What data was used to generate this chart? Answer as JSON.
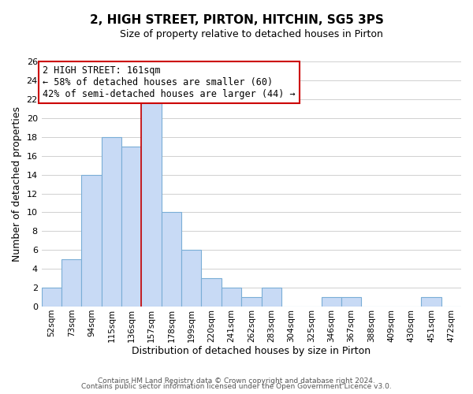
{
  "title": "2, HIGH STREET, PIRTON, HITCHIN, SG5 3PS",
  "subtitle": "Size of property relative to detached houses in Pirton",
  "xlabel": "Distribution of detached houses by size in Pirton",
  "ylabel": "Number of detached properties",
  "bin_labels": [
    "52sqm",
    "73sqm",
    "94sqm",
    "115sqm",
    "136sqm",
    "157sqm",
    "178sqm",
    "199sqm",
    "220sqm",
    "241sqm",
    "262sqm",
    "283sqm",
    "304sqm",
    "325sqm",
    "346sqm",
    "367sqm",
    "388sqm",
    "409sqm",
    "430sqm",
    "451sqm",
    "472sqm"
  ],
  "bar_values": [
    2,
    5,
    14,
    18,
    17,
    22,
    10,
    6,
    3,
    2,
    1,
    2,
    0,
    0,
    1,
    1,
    0,
    0,
    0,
    1,
    0
  ],
  "bar_color": "#c8daf5",
  "bar_edge_color": "#7aaed6",
  "highlight_bin_index": 5,
  "highlight_color": "#cc0000",
  "ylim": [
    0,
    26
  ],
  "yticks": [
    0,
    2,
    4,
    6,
    8,
    10,
    12,
    14,
    16,
    18,
    20,
    22,
    24,
    26
  ],
  "annotation_title": "2 HIGH STREET: 161sqm",
  "annotation_line1": "← 58% of detached houses are smaller (60)",
  "annotation_line2": "42% of semi-detached houses are larger (44) →",
  "annotation_box_color": "#ffffff",
  "annotation_box_edge": "#cc0000",
  "footer1": "Contains HM Land Registry data © Crown copyright and database right 2024.",
  "footer2": "Contains public sector information licensed under the Open Government Licence v3.0.",
  "background_color": "#ffffff",
  "grid_color": "#d0d0d0",
  "bin_width": 21
}
